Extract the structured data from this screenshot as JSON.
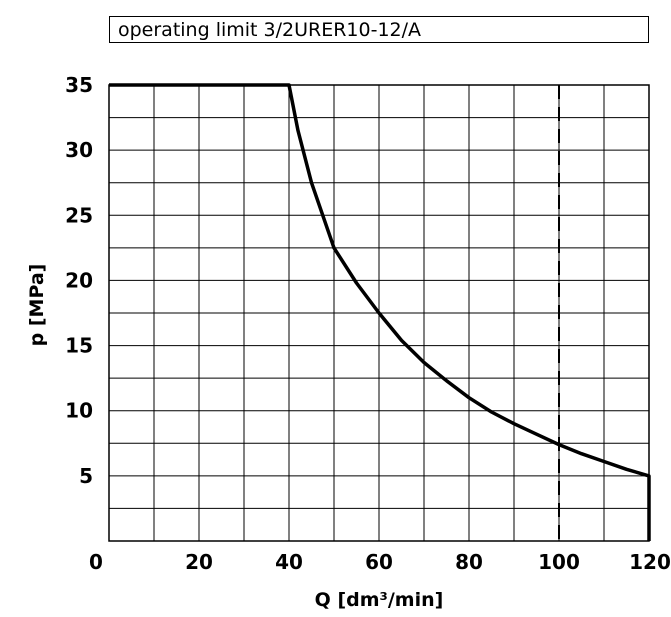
{
  "chart_data": {
    "type": "line",
    "title": "operating limit 3/2URER10-12/A",
    "xlabel": "Q  [dm³/min]",
    "ylabel": "p  [MPa]",
    "xlim": [
      0,
      120
    ],
    "ylim": [
      0,
      35
    ],
    "x_ticks": [
      "0",
      "20",
      "40",
      "60",
      "80",
      "100",
      "120"
    ],
    "y_ticks": [
      "5",
      "10",
      "15",
      "20",
      "25",
      "30",
      "35"
    ],
    "grid": true,
    "series": [
      {
        "x": [
          0,
          40,
          42,
          45,
          50,
          55,
          60,
          65,
          70,
          75,
          80,
          85,
          90,
          95,
          100,
          105,
          110,
          115,
          120,
          120
        ],
        "values": [
          35,
          35,
          31.5,
          27.5,
          22.5,
          19.8,
          17.5,
          15.4,
          13.7,
          12.3,
          11.0,
          9.9,
          9.0,
          8.2,
          7.4,
          6.7,
          6.1,
          5.5,
          5.0,
          0
        ]
      }
    ],
    "reference_lines": [
      {
        "x": 100,
        "style": "dashed"
      }
    ]
  }
}
